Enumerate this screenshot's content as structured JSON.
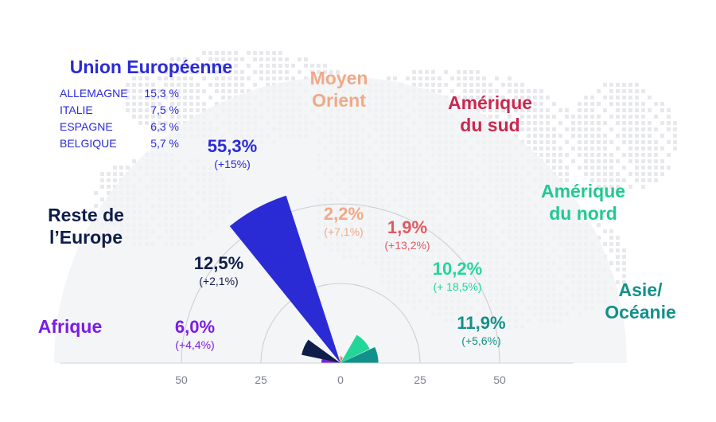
{
  "chart_data": {
    "type": "polar-bar",
    "axis_ticks": [
      "50",
      "25",
      "0",
      "25",
      "50"
    ],
    "axis_range": [
      -50,
      50
    ],
    "rings": [
      25,
      50
    ],
    "regions": [
      {
        "name": "Afrique",
        "value": 6.0,
        "pct_label": "6,0%",
        "change_label": "(+4,4%)",
        "color": "#7b1ce6"
      },
      {
        "name": "Reste de\nl’Europe",
        "value": 12.5,
        "pct_label": "12,5%",
        "change_label": "(+2,1%)",
        "color": "#0f1d4a"
      },
      {
        "name": "Union Européenne",
        "value": 55.3,
        "pct_label": "55,3%",
        "change_label": "(+15%)",
        "color": "#2b2bd6"
      },
      {
        "name": "Moyen\nOrient",
        "value": 2.2,
        "pct_label": "2,2%",
        "change_label": "(+7,1%)",
        "color": "#f0a987"
      },
      {
        "name": "Amérique\ndu sud",
        "value": 1.9,
        "pct_label": "1,9%",
        "change_label": "(+13,2%)",
        "color": "#e05a62"
      },
      {
        "name": "Amérique\ndu nord",
        "value": 10.2,
        "pct_label": "10,2%",
        "change_label": "(+ 18,5%)",
        "color": "#22d69a"
      },
      {
        "name": "Asie/\nOcéanie",
        "value": 11.9,
        "pct_label": "11,9%",
        "change_label": "(+5,6%)",
        "color": "#12918a"
      }
    ],
    "eu_breakdown": [
      {
        "country": "ALLEMAGNE",
        "value": "15,3 %"
      },
      {
        "country": "ITALIE",
        "value": "7,5 %"
      },
      {
        "country": "ESPAGNE",
        "value": "6,3 %"
      },
      {
        "country": "BELGIQUE",
        "value": "5,7 %"
      }
    ]
  },
  "colors": {
    "moyen_orient_text": "#f0a987",
    "amerique_sud_text": "#c8294f",
    "amerique_nord_text": "#22c98f",
    "asie_text": "#12918a",
    "afrique_text": "#7b1ce6",
    "europe_text": "#0f1d4a",
    "ue_text": "#2b2bd6"
  }
}
